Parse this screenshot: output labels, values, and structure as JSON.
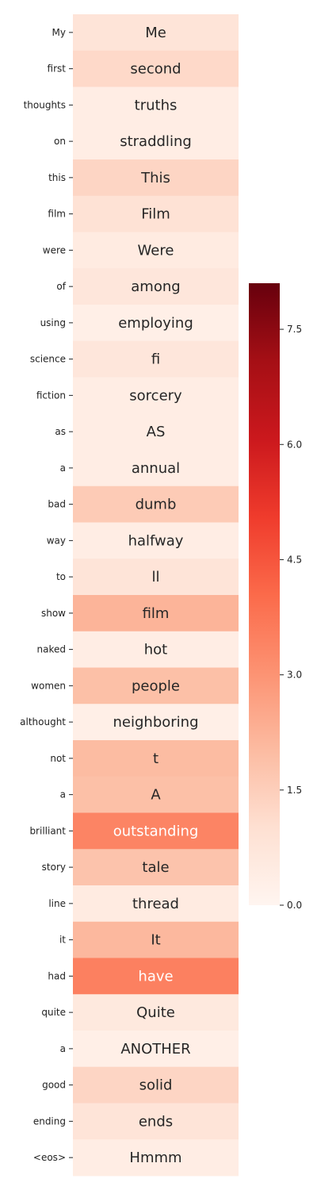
{
  "chart_data": {
    "type": "heatmap",
    "colormap": "Reds",
    "row_labels": [
      "My",
      "first",
      "thoughts",
      "on",
      "this",
      "film",
      "were",
      "of",
      "using",
      "science",
      "fiction",
      "as",
      "a",
      "bad",
      "way",
      "to",
      "show",
      "naked",
      "women",
      "althought",
      "not",
      "a",
      "brilliant",
      "story",
      "line",
      "it",
      "had",
      "quite",
      "a",
      "good",
      "ending",
      "<eos>"
    ],
    "cell_text": [
      "Me",
      "second",
      "truths",
      "straddling",
      "This",
      "Film",
      "Were",
      "among",
      "employing",
      "fi",
      "sorcery",
      "AS",
      "annual",
      "dumb",
      "halfway",
      "ll",
      "film",
      "hot",
      "people",
      "neighboring",
      "t",
      "A",
      "outstanding",
      "tale",
      "thread",
      "It",
      "have",
      "Quite",
      "ANOTHER",
      "solid",
      "ends",
      "Hmmm"
    ],
    "values": [
      0.8,
      1.2,
      0.4,
      0.4,
      1.3,
      0.9,
      0.5,
      0.7,
      0.3,
      0.7,
      0.4,
      0.4,
      0.4,
      1.6,
      0.4,
      0.8,
      2.2,
      0.4,
      1.9,
      0.3,
      2.0,
      1.9,
      3.4,
      1.8,
      0.5,
      2.1,
      3.5,
      0.6,
      0.3,
      1.3,
      0.8,
      0.4
    ],
    "colorbar": {
      "vmin": 0.0,
      "vmax": 8.1,
      "ticks": [
        "0.0",
        "1.5",
        "3.0",
        "4.5",
        "6.0",
        "7.5"
      ],
      "tick_values": [
        0.0,
        1.5,
        3.0,
        4.5,
        6.0,
        7.5
      ]
    },
    "light_text_color": "#ffffff",
    "dark_text_color": "#262626"
  }
}
